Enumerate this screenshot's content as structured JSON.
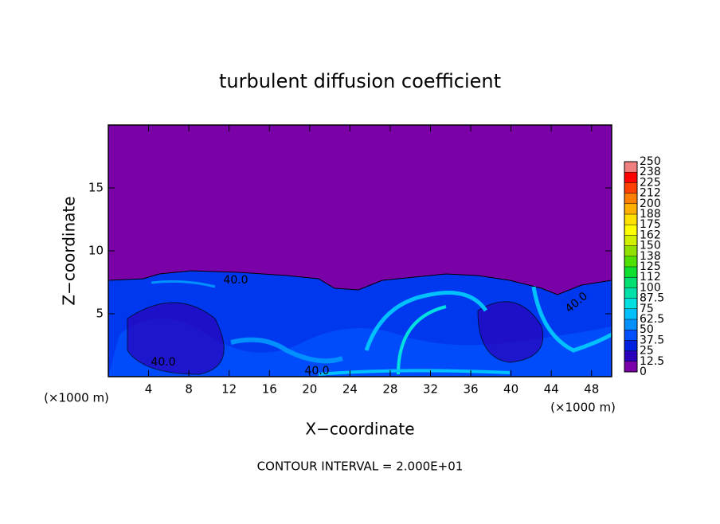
{
  "chart_data": {
    "type": "contour",
    "title": "turbulent diffusion coefficient",
    "xlabel": "X−coordinate",
    "ylabel": "Z−coordinate",
    "x_unit": "(×1000 m)",
    "note": "CONTOUR INTERVAL = 2.000E+01",
    "xlim": [
      0,
      50
    ],
    "ylim": [
      0,
      20
    ],
    "xticks": [
      4,
      8,
      12,
      16,
      20,
      24,
      28,
      32,
      36,
      40,
      44,
      48
    ],
    "yticks": [
      5,
      10,
      15
    ],
    "contour_labels": [
      "40.0",
      "40.0",
      "40.0",
      "40.0"
    ],
    "colorbar": {
      "ticks": [
        0,
        12.5,
        25,
        37.5,
        50,
        62.5,
        75,
        87.5,
        100,
        {
          "value": 112.5,
          "label": "112"
        },
        125,
        {
          "value": 137.5,
          "label": "138"
        },
        150,
        {
          "value": 162.5,
          "label": "162"
        },
        175,
        {
          "value": 187.5,
          "label": "188"
        },
        200,
        {
          "value": 212.5,
          "label": "212"
        },
        225,
        {
          "value": 237.5,
          "label": "238"
        },
        250
      ],
      "colors": [
        "#7a00a8",
        "#2a00b8",
        "#0020e0",
        "#0050ff",
        "#0090ff",
        "#00c0ff",
        "#00e0e0",
        "#00e0a8",
        "#00e070",
        "#10e030",
        "#50e000",
        "#90e000",
        "#d0f000",
        "#ffff00",
        "#ffe000",
        "#ffb000",
        "#ff8000",
        "#ff4000",
        "#ff0000",
        "#f08080"
      ]
    }
  }
}
